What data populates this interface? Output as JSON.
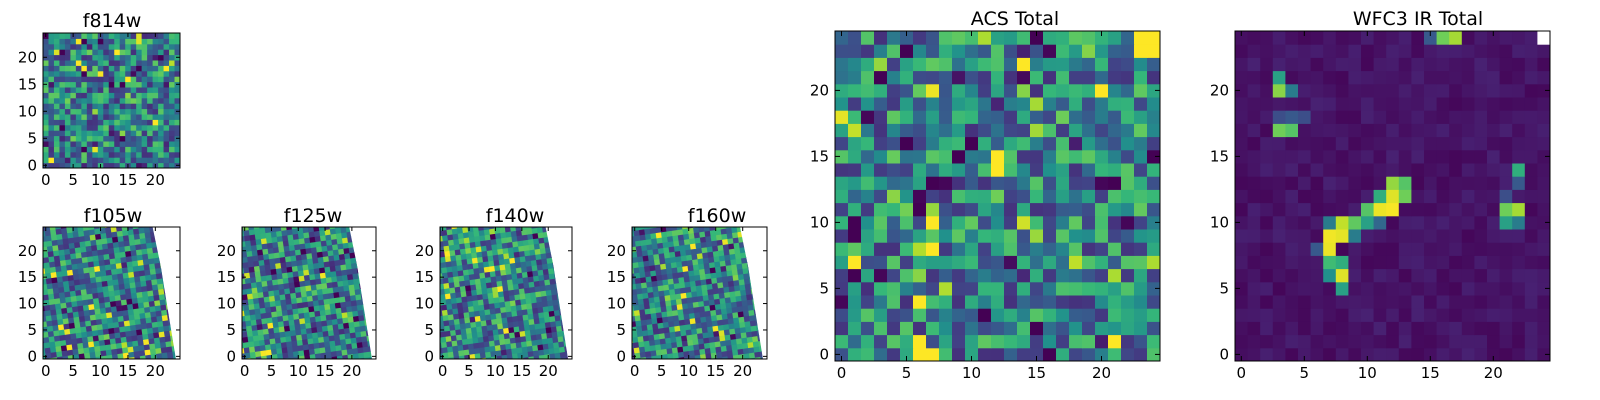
{
  "chart_data": [
    {
      "id": "f814w",
      "type": "heatmap",
      "title": "f814w",
      "nx": 25,
      "ny": 25,
      "xlim": [
        -0.5,
        24.5
      ],
      "ylim": [
        -0.5,
        24.5
      ],
      "xticks": [
        0,
        5,
        10,
        15,
        20
      ],
      "yticks": [
        0,
        5,
        10,
        15,
        20
      ],
      "pattern": "noise",
      "seed": 11,
      "colormap": "viridis"
    },
    {
      "id": "f105w",
      "type": "heatmap",
      "title": "f105w",
      "nx": 25,
      "ny": 25,
      "xlim": [
        -0.5,
        24.5
      ],
      "ylim": [
        -0.5,
        24.5
      ],
      "xticks": [
        0,
        5,
        10,
        15,
        20
      ],
      "yticks": [
        0,
        5,
        10,
        15,
        20
      ],
      "pattern": "rotated",
      "seed": 23,
      "colormap": "viridis"
    },
    {
      "id": "f125w",
      "type": "heatmap",
      "title": "f125w",
      "nx": 25,
      "ny": 25,
      "xlim": [
        -0.5,
        24.5
      ],
      "ylim": [
        -0.5,
        24.5
      ],
      "xticks": [
        0,
        5,
        10,
        15,
        20
      ],
      "yticks": [
        0,
        5,
        10,
        15,
        20
      ],
      "pattern": "rotated",
      "seed": 37,
      "colormap": "viridis"
    },
    {
      "id": "f140w",
      "type": "heatmap",
      "title": "f140w",
      "nx": 25,
      "ny": 25,
      "xlim": [
        -0.5,
        24.5
      ],
      "ylim": [
        -0.5,
        24.5
      ],
      "xticks": [
        0,
        5,
        10,
        15,
        20
      ],
      "yticks": [
        0,
        5,
        10,
        15,
        20
      ],
      "pattern": "rotated",
      "seed": 41,
      "colormap": "viridis"
    },
    {
      "id": "f160w",
      "type": "heatmap",
      "title": "f160w",
      "nx": 25,
      "ny": 25,
      "xlim": [
        -0.5,
        24.5
      ],
      "ylim": [
        -0.5,
        24.5
      ],
      "xticks": [
        0,
        5,
        10,
        15,
        20
      ],
      "yticks": [
        0,
        5,
        10,
        15,
        20
      ],
      "pattern": "rotated",
      "seed": 53,
      "colormap": "viridis"
    },
    {
      "id": "acs-total",
      "type": "heatmap",
      "title": "ACS Total",
      "nx": 25,
      "ny": 25,
      "xlim": [
        -0.5,
        24.5
      ],
      "ylim": [
        -0.5,
        24.5
      ],
      "xticks": [
        0,
        5,
        10,
        15,
        20
      ],
      "yticks": [
        0,
        5,
        10,
        15,
        20
      ],
      "pattern": "noise",
      "seed": 67,
      "colormap": "viridis",
      "hot_cells": [
        [
          23,
          24
        ],
        [
          24,
          24
        ],
        [
          23,
          23
        ],
        [
          24,
          23
        ],
        [
          6,
          0
        ],
        [
          7,
          0
        ],
        [
          6,
          1
        ]
      ],
      "cold_cells": [
        [
          16,
          23
        ],
        [
          8,
          13
        ],
        [
          6,
          12
        ],
        [
          20,
          13
        ],
        [
          22,
          10
        ],
        [
          3,
          6
        ],
        [
          0,
          4
        ],
        [
          2,
          18
        ]
      ]
    },
    {
      "id": "wfc3-ir-total",
      "type": "heatmap",
      "title": "WFC3 IR Total",
      "nx": 25,
      "ny": 25,
      "xlim": [
        -0.5,
        24.5
      ],
      "ylim": [
        -0.5,
        24.5
      ],
      "xticks": [
        0,
        5,
        10,
        15,
        20
      ],
      "yticks": [
        0,
        5,
        10,
        15,
        20
      ],
      "pattern": "background",
      "seed": 79,
      "colormap": "viridis",
      "blank_cells": [
        [
          24,
          24
        ]
      ],
      "bright_cells": [
        {
          "c": [
            7,
            9
          ],
          "v": 0.98
        },
        {
          "c": [
            8,
            9
          ],
          "v": 0.96
        },
        {
          "c": [
            7,
            8
          ],
          "v": 0.97
        },
        {
          "c": [
            8,
            10
          ],
          "v": 0.9
        },
        {
          "c": [
            11,
            11
          ],
          "v": 0.97
        },
        {
          "c": [
            12,
            11
          ],
          "v": 0.99
        },
        {
          "c": [
            12,
            12
          ],
          "v": 0.95
        },
        {
          "c": [
            8,
            6
          ],
          "v": 0.95
        },
        {
          "c": [
            13,
            12
          ],
          "v": 0.75
        },
        {
          "c": [
            12,
            13
          ],
          "v": 0.82
        },
        {
          "c": [
            13,
            13
          ],
          "v": 0.7
        },
        {
          "c": [
            9,
            10
          ],
          "v": 0.72
        },
        {
          "c": [
            10,
            11
          ],
          "v": 0.7
        },
        {
          "c": [
            7,
            7
          ],
          "v": 0.65
        },
        {
          "c": [
            8,
            7
          ],
          "v": 0.6
        },
        {
          "c": [
            10,
            10
          ],
          "v": 0.55
        },
        {
          "c": [
            11,
            12
          ],
          "v": 0.6
        },
        {
          "c": [
            8,
            5
          ],
          "v": 0.55
        },
        {
          "c": [
            7,
            6
          ],
          "v": 0.5
        },
        {
          "c": [
            9,
            9
          ],
          "v": 0.45
        },
        {
          "c": [
            7,
            10
          ],
          "v": 0.45
        },
        {
          "c": [
            11,
            10
          ],
          "v": 0.4
        },
        {
          "c": [
            6,
            8
          ],
          "v": 0.35
        },
        {
          "c": [
            3,
            20
          ],
          "v": 0.8
        },
        {
          "c": [
            3,
            17
          ],
          "v": 0.75
        },
        {
          "c": [
            4,
            17
          ],
          "v": 0.7
        },
        {
          "c": [
            3,
            21
          ],
          "v": 0.55
        },
        {
          "c": [
            4,
            20
          ],
          "v": 0.45
        },
        {
          "c": [
            4,
            18
          ],
          "v": 0.35
        },
        {
          "c": [
            3,
            18
          ],
          "v": 0.3
        },
        {
          "c": [
            5,
            18
          ],
          "v": 0.3
        },
        {
          "c": [
            16,
            24
          ],
          "v": 0.75
        },
        {
          "c": [
            17,
            24
          ],
          "v": 0.85
        },
        {
          "c": [
            15,
            24
          ],
          "v": 0.35
        },
        {
          "c": [
            21,
            11
          ],
          "v": 0.75
        },
        {
          "c": [
            22,
            11
          ],
          "v": 0.85
        },
        {
          "c": [
            21,
            10
          ],
          "v": 0.55
        },
        {
          "c": [
            22,
            10
          ],
          "v": 0.45
        },
        {
          "c": [
            22,
            14
          ],
          "v": 0.6
        },
        {
          "c": [
            22,
            13
          ],
          "v": 0.35
        },
        {
          "c": [
            21,
            12
          ],
          "v": 0.3
        }
      ]
    }
  ]
}
